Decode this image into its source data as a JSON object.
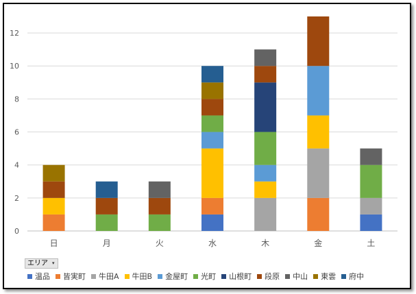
{
  "filter": {
    "label": "エリア",
    "caret": "▾"
  },
  "chart_data": {
    "type": "bar",
    "stacked": true,
    "title": "",
    "xlabel": "",
    "ylabel": "",
    "categories": [
      "日",
      "月",
      "火",
      "水",
      "木",
      "金",
      "土"
    ],
    "ylim": [
      0,
      13
    ],
    "yticks": [
      0,
      2,
      4,
      6,
      8,
      10,
      12
    ],
    "grid": true,
    "legend_position": "bottom",
    "series": [
      {
        "name": "温品",
        "color": "#4472C4",
        "values": [
          0,
          0,
          0,
          1,
          0,
          0,
          1
        ]
      },
      {
        "name": "皆実町",
        "color": "#ED7D31",
        "values": [
          1,
          0,
          0,
          1,
          0,
          2,
          0
        ]
      },
      {
        "name": "牛田A",
        "color": "#A5A5A5",
        "values": [
          0,
          0,
          0,
          0,
          2,
          3,
          1
        ]
      },
      {
        "name": "牛田B",
        "color": "#FFC000",
        "values": [
          1,
          0,
          0,
          3,
          1,
          2,
          0
        ]
      },
      {
        "name": "金屋町",
        "color": "#5B9BD5",
        "values": [
          0,
          0,
          0,
          1,
          1,
          3,
          0
        ]
      },
      {
        "name": "光町",
        "color": "#70AD47",
        "values": [
          0,
          1,
          1,
          1,
          2,
          0,
          2
        ]
      },
      {
        "name": "山根町",
        "color": "#264478",
        "values": [
          0,
          0,
          0,
          0,
          3,
          0,
          0
        ]
      },
      {
        "name": "段原",
        "color": "#9E480E",
        "values": [
          1,
          1,
          1,
          1,
          1,
          3,
          0
        ]
      },
      {
        "name": "中山",
        "color": "#636363",
        "values": [
          0,
          0,
          1,
          0,
          1,
          0,
          1
        ]
      },
      {
        "name": "東雲",
        "color": "#997300",
        "values": [
          1,
          0,
          0,
          1,
          0,
          0,
          0
        ]
      },
      {
        "name": "府中",
        "color": "#255E91",
        "values": [
          0,
          1,
          0,
          1,
          0,
          0,
          0
        ]
      }
    ]
  }
}
